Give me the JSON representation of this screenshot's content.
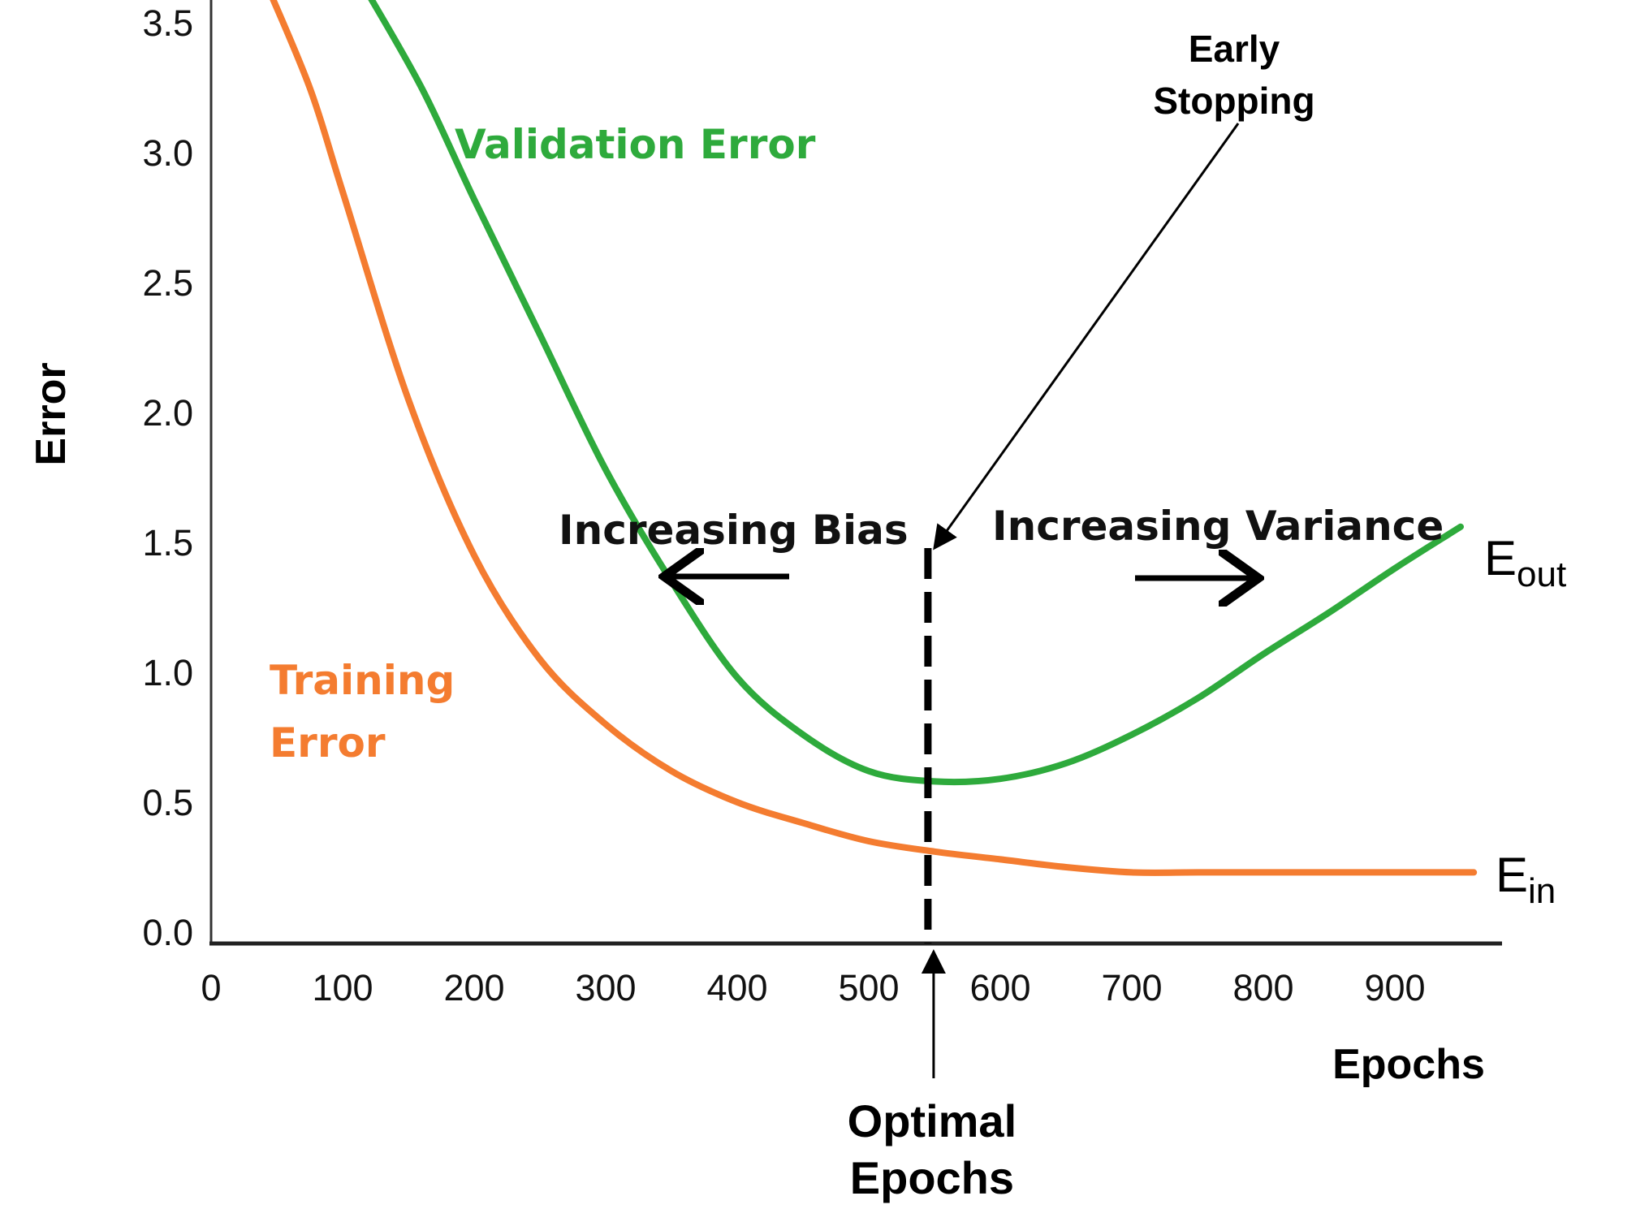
{
  "chart_data": {
    "type": "line",
    "xlabel": "Epochs",
    "ylabel": "Error",
    "xlim": [
      0,
      980
    ],
    "ylim": [
      0,
      3.65
    ],
    "x_ticks": [
      "0",
      "100",
      "200",
      "300",
      "400",
      "500",
      "600",
      "700",
      "800",
      "900"
    ],
    "x_tick_values": [
      0,
      100,
      200,
      300,
      400,
      500,
      600,
      700,
      800,
      900
    ],
    "y_ticks": [
      "0.0",
      "0.5",
      "1.0",
      "1.5",
      "2.0",
      "2.5",
      "3.0",
      "3.5"
    ],
    "y_tick_values": [
      0,
      0.5,
      1.0,
      1.5,
      2.0,
      2.5,
      3.0,
      3.5
    ],
    "grid": false,
    "series": [
      {
        "name": "Validation Error",
        "end_label": "E",
        "end_label_sub": "out",
        "color": "#2eaa3c",
        "x": [
          115,
          160,
          200,
          250,
          300,
          350,
          400,
          450,
          500,
          550,
          600,
          650,
          700,
          750,
          800,
          850,
          900,
          950
        ],
        "y": [
          3.65,
          3.25,
          2.82,
          2.3,
          1.78,
          1.35,
          0.98,
          0.76,
          0.62,
          0.58,
          0.59,
          0.65,
          0.76,
          0.9,
          1.07,
          1.23,
          1.4,
          1.56
        ]
      },
      {
        "name": "Training Error",
        "end_label": "E",
        "end_label_sub": "in",
        "color": "#f47c30",
        "x": [
          42,
          75,
          100,
          150,
          200,
          250,
          300,
          350,
          400,
          450,
          500,
          550,
          600,
          650,
          700,
          750,
          800,
          850,
          900,
          960
        ],
        "y": [
          3.65,
          3.25,
          2.85,
          2.05,
          1.45,
          1.05,
          0.8,
          0.62,
          0.5,
          0.42,
          0.35,
          0.31,
          0.28,
          0.25,
          0.23,
          0.23,
          0.23,
          0.23,
          0.23,
          0.23
        ]
      }
    ],
    "annotations": {
      "optimal_x": 545,
      "optimal_label_line1": "Optimal",
      "optimal_label_line2": "Epochs",
      "early_stopping_line1": "Early",
      "early_stopping_line2": "Stopping",
      "increasing_bias": "Increasing Bias",
      "increasing_variance": "Increasing Variance"
    },
    "label_text": {
      "validation": "Validation Error",
      "training_line1": "Training",
      "training_line2": "Error"
    }
  }
}
